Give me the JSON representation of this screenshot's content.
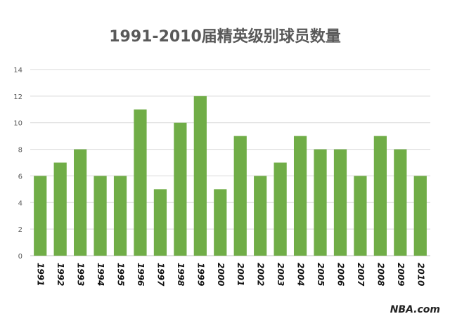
{
  "chart_data": {
    "type": "bar",
    "title": "1991-2010届精英级别球员数量",
    "categories": [
      "1991",
      "1992",
      "1993",
      "1994",
      "1995",
      "1996",
      "1997",
      "1998",
      "1999",
      "2000",
      "2001",
      "2002",
      "2003",
      "2004",
      "2005",
      "2006",
      "2007",
      "2008",
      "2009",
      "2010"
    ],
    "values": [
      6,
      7,
      8,
      6,
      6,
      11,
      5,
      10,
      12,
      5,
      9,
      6,
      7,
      9,
      8,
      8,
      6,
      9,
      8,
      6
    ],
    "ylim": [
      0,
      14
    ],
    "yticks": [
      0,
      2,
      4,
      6,
      8,
      10,
      12,
      14
    ],
    "grid": true,
    "legend": "none",
    "bar_color": "#70ad47",
    "xlabel": "",
    "ylabel": ""
  },
  "watermark": "NBA.com"
}
